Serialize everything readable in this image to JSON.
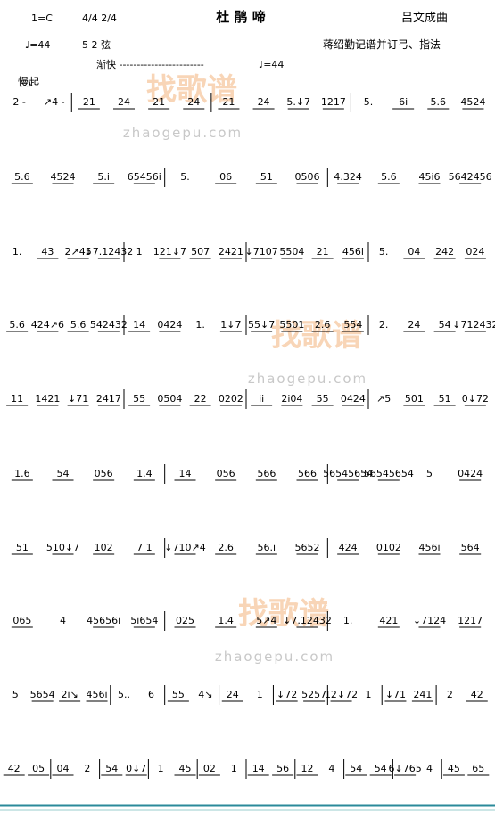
{
  "header": {
    "key": "1=C",
    "meter": "4/4 2/4",
    "title": "杜 鹃 啼",
    "composer": "吕文成曲",
    "tempo": "♩=44",
    "strings": "5 2 弦",
    "credit": "蒋绍勤记谱并订弓、指法",
    "accel": "渐快 ------------------------",
    "tempo2": "♩=44",
    "start": "慢起"
  },
  "watermarks": [
    {
      "logo": "找歌谱",
      "url": "zhaogepu.com"
    },
    {
      "logo": "找歌谱",
      "url": "zhaogepu.com"
    },
    {
      "logo": "找歌谱",
      "url": "zhaogepu.com"
    }
  ],
  "score": {
    "rows": [
      [
        [
          "2 -",
          "↗4 -"
        ],
        [
          "21",
          "24",
          "21",
          "24"
        ],
        [
          "21",
          "24",
          "5.↓7",
          "1217"
        ],
        [
          "5.",
          "6i",
          "5.6",
          "4524"
        ]
      ],
      [
        [
          "5.6",
          "4524",
          "5.i",
          "65456i"
        ],
        [
          "5.",
          "06",
          "51",
          "0506"
        ],
        [
          "4.324",
          "5.6",
          "45i6",
          "5642456"
        ]
      ],
      [
        [
          "1.",
          "43",
          "2↗45",
          "↓7.12432"
        ],
        [
          "1",
          "121↓7",
          "507",
          "2421"
        ],
        [
          "↓7107",
          "5504",
          "21",
          "456i"
        ],
        [
          "5.",
          "04",
          "242",
          "024"
        ]
      ],
      [
        [
          "5.6",
          "424↗6",
          "5.6",
          "542432"
        ],
        [
          "14",
          "0424",
          "1.",
          "1↓7"
        ],
        [
          "55↓7",
          "5501",
          "2.6",
          "554"
        ],
        [
          "2.",
          "24",
          "54",
          "↓712432"
        ]
      ],
      [
        [
          "11",
          "1421",
          "↓71",
          "2417"
        ],
        [
          "55",
          "0504",
          "22",
          "0202"
        ],
        [
          "ii",
          "2i04",
          "55",
          "0424"
        ],
        [
          "↗5",
          "501",
          "51",
          "0↓72"
        ]
      ],
      [
        [
          "1.6",
          "54",
          "056",
          "1.4"
        ],
        [
          "14",
          "056",
          "566",
          "566"
        ],
        [
          "56545654",
          "56545654",
          "5",
          "0424"
        ]
      ],
      [
        [
          "51",
          "510↓7",
          "102",
          "7 1"
        ],
        [
          "↓710↗4",
          "2.6",
          "56.i",
          "5652"
        ],
        [
          "424",
          "0102",
          "456i",
          "564"
        ]
      ],
      [
        [
          "065",
          "4",
          "45656i",
          "5i654"
        ],
        [
          "025",
          "1.4",
          "5↗4",
          "↓7.12432"
        ],
        [
          "1.",
          "421",
          "↓7124",
          "1217"
        ]
      ],
      [
        [
          "5",
          "5654",
          "2i↘",
          "456i"
        ],
        [
          "5..",
          "6"
        ],
        [
          "55",
          "4↘"
        ],
        [
          "24",
          "1"
        ],
        [
          "↓72",
          "5257"
        ],
        [
          "12↓72",
          "1"
        ],
        [
          "↓71",
          "241"
        ],
        [
          "2",
          "42"
        ]
      ],
      [
        [
          "42",
          "05"
        ],
        [
          "04",
          "2"
        ],
        [
          "54",
          "0↓7"
        ],
        [
          "1",
          "45"
        ],
        [
          "02",
          "1"
        ],
        [
          "14",
          "56"
        ],
        [
          "12",
          "4"
        ],
        [
          "54",
          "54"
        ],
        [
          "6↓765",
          "4"
        ],
        [
          "45",
          "65"
        ]
      ]
    ]
  }
}
